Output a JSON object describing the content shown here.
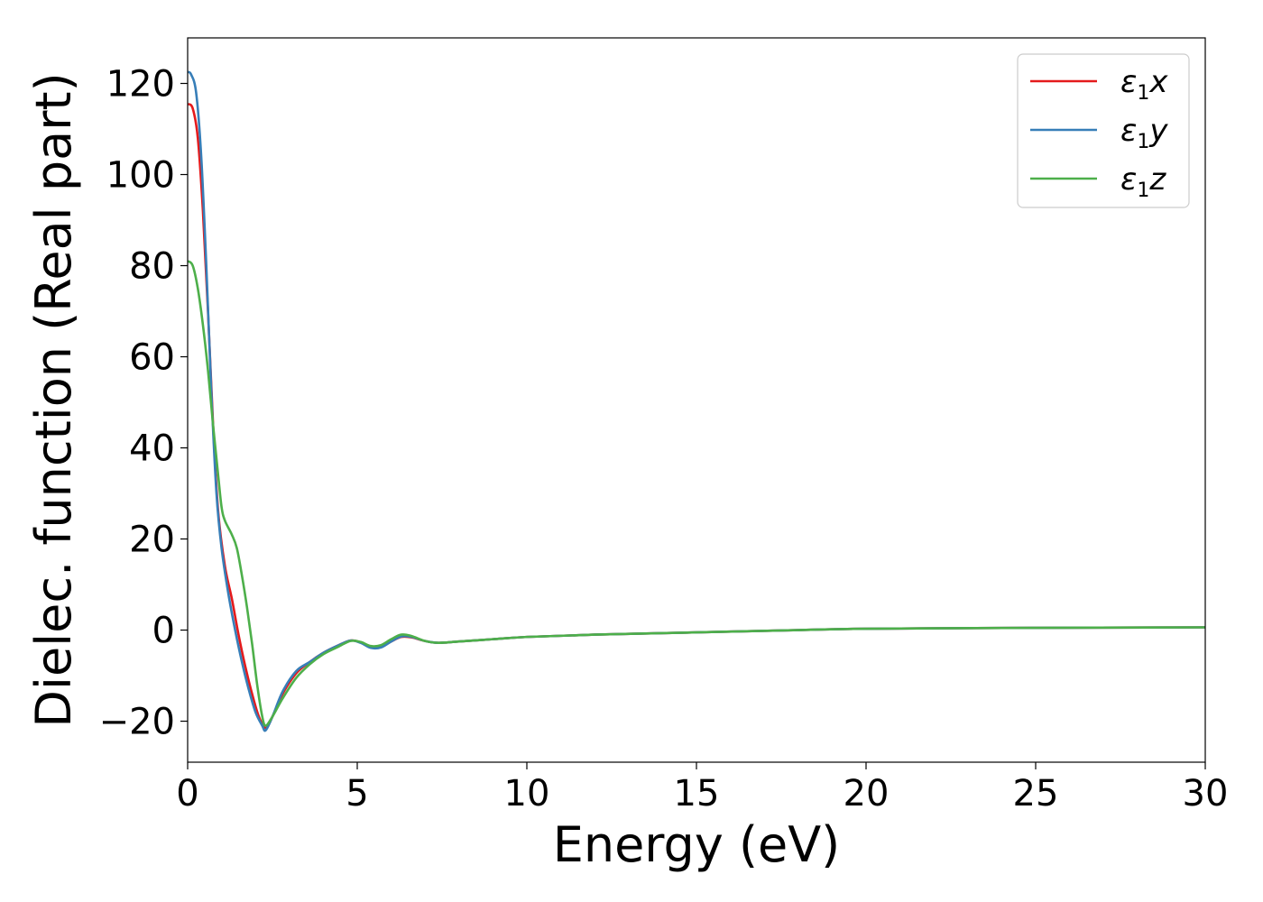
{
  "chart_data": {
    "type": "line",
    "title": "",
    "xlabel": "Energy (eV)",
    "ylabel": "Dielec. function (Real part)",
    "xlim": [
      0,
      30
    ],
    "ylim": [
      -29,
      130
    ],
    "grid": false,
    "legend_position": "top-right",
    "x_ticks": [
      0,
      5,
      10,
      15,
      20,
      25,
      30
    ],
    "x_tick_labels": [
      "0",
      "5",
      "10",
      "15",
      "20",
      "25",
      "30"
    ],
    "y_ticks": [
      -20,
      0,
      20,
      40,
      60,
      80,
      100,
      120
    ],
    "y_tick_labels": [
      "−20",
      "0",
      "20",
      "40",
      "60",
      "80",
      "100",
      "120"
    ],
    "series": [
      {
        "name": "ε₁x",
        "legend_base": "ε",
        "legend_sub": "1",
        "legend_var": "x",
        "color": "#e41a1c",
        "points": [
          [
            0,
            115.5
          ],
          [
            0.15,
            114.5
          ],
          [
            0.3,
            108
          ],
          [
            0.45,
            92
          ],
          [
            0.6,
            70
          ],
          [
            0.75,
            45
          ],
          [
            0.9,
            26
          ],
          [
            1.1,
            14
          ],
          [
            1.3,
            7
          ],
          [
            1.5,
            -1
          ],
          [
            1.7,
            -8
          ],
          [
            1.9,
            -14
          ],
          [
            2.1,
            -19
          ],
          [
            2.3,
            -21.5
          ],
          [
            2.5,
            -19
          ],
          [
            2.8,
            -14
          ],
          [
            3.2,
            -9.5
          ],
          [
            3.6,
            -7
          ],
          [
            4.0,
            -5
          ],
          [
            4.4,
            -3.5
          ],
          [
            4.8,
            -2.3
          ],
          [
            5.1,
            -2.7
          ],
          [
            5.4,
            -3.8
          ],
          [
            5.7,
            -3.7
          ],
          [
            6.0,
            -2.5
          ],
          [
            6.3,
            -1.5
          ],
          [
            6.6,
            -1.6
          ],
          [
            7.0,
            -2.4
          ],
          [
            7.4,
            -2.8
          ],
          [
            8,
            -2.5
          ],
          [
            9,
            -2.0
          ],
          [
            10,
            -1.5
          ],
          [
            12,
            -1.0
          ],
          [
            15,
            -0.5
          ],
          [
            18,
            0.0
          ],
          [
            20,
            0.3
          ],
          [
            25,
            0.5
          ],
          [
            30,
            0.6
          ]
        ]
      },
      {
        "name": "ε₁y",
        "legend_base": "ε",
        "legend_sub": "1",
        "legend_var": "y",
        "color": "#377eb8",
        "points": [
          [
            0,
            122.5
          ],
          [
            0.1,
            122
          ],
          [
            0.25,
            118
          ],
          [
            0.4,
            104
          ],
          [
            0.55,
            80
          ],
          [
            0.7,
            52
          ],
          [
            0.85,
            30
          ],
          [
            1.0,
            18
          ],
          [
            1.2,
            8
          ],
          [
            1.4,
            0
          ],
          [
            1.6,
            -7
          ],
          [
            1.8,
            -13
          ],
          [
            2.0,
            -18
          ],
          [
            2.2,
            -21
          ],
          [
            2.3,
            -22
          ],
          [
            2.5,
            -19
          ],
          [
            2.8,
            -13.5
          ],
          [
            3.2,
            -9
          ],
          [
            3.6,
            -7
          ],
          [
            4.0,
            -5
          ],
          [
            4.4,
            -3.5
          ],
          [
            4.8,
            -2.3
          ],
          [
            5.1,
            -2.8
          ],
          [
            5.4,
            -3.9
          ],
          [
            5.7,
            -3.8
          ],
          [
            6.0,
            -2.5
          ],
          [
            6.3,
            -1.4
          ],
          [
            6.6,
            -1.5
          ],
          [
            7.0,
            -2.4
          ],
          [
            7.4,
            -2.8
          ],
          [
            8,
            -2.5
          ],
          [
            9,
            -2.0
          ],
          [
            10,
            -1.5
          ],
          [
            12,
            -1.0
          ],
          [
            15,
            -0.5
          ],
          [
            18,
            0.0
          ],
          [
            20,
            0.3
          ],
          [
            25,
            0.5
          ],
          [
            30,
            0.6
          ]
        ]
      },
      {
        "name": "ε₁z",
        "legend_base": "ε",
        "legend_sub": "1",
        "legend_var": "z",
        "color": "#4daf4a",
        "points": [
          [
            0,
            81
          ],
          [
            0.15,
            80
          ],
          [
            0.3,
            75
          ],
          [
            0.45,
            67
          ],
          [
            0.6,
            57
          ],
          [
            0.75,
            45
          ],
          [
            0.9,
            34
          ],
          [
            1.0,
            27
          ],
          [
            1.1,
            24
          ],
          [
            1.3,
            21
          ],
          [
            1.45,
            18
          ],
          [
            1.6,
            12
          ],
          [
            1.75,
            5
          ],
          [
            1.9,
            -3
          ],
          [
            2.05,
            -12
          ],
          [
            2.2,
            -19
          ],
          [
            2.3,
            -21
          ],
          [
            2.5,
            -19
          ],
          [
            2.8,
            -15
          ],
          [
            3.2,
            -10.5
          ],
          [
            3.6,
            -7.5
          ],
          [
            4.0,
            -5.3
          ],
          [
            4.4,
            -3.8
          ],
          [
            4.8,
            -2.4
          ],
          [
            5.1,
            -2.6
          ],
          [
            5.4,
            -3.5
          ],
          [
            5.7,
            -3.3
          ],
          [
            6.0,
            -2.0
          ],
          [
            6.3,
            -1.0
          ],
          [
            6.6,
            -1.3
          ],
          [
            7.0,
            -2.4
          ],
          [
            7.4,
            -2.8
          ],
          [
            8,
            -2.5
          ],
          [
            9,
            -2.0
          ],
          [
            10,
            -1.5
          ],
          [
            12,
            -1.0
          ],
          [
            15,
            -0.5
          ],
          [
            18,
            0.0
          ],
          [
            20,
            0.3
          ],
          [
            25,
            0.5
          ],
          [
            30,
            0.6
          ]
        ]
      }
    ]
  }
}
